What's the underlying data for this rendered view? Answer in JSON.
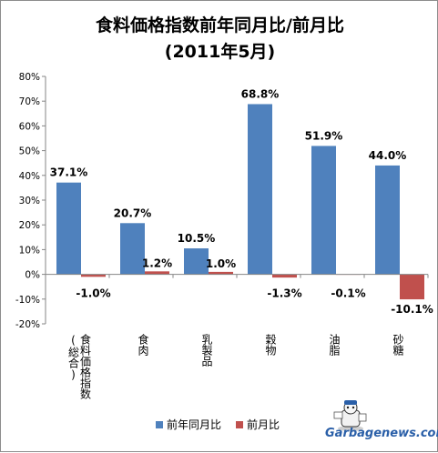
{
  "chart_data": {
    "type": "bar",
    "title": "食料価格指数前年同月比/前月比",
    "subtitle": "(2011年5月)",
    "categories": [
      [
        "食料価格指数",
        "(総合)"
      ],
      [
        "食肉"
      ],
      [
        "乳製品"
      ],
      [
        "穀物"
      ],
      [
        "油脂"
      ],
      [
        "砂糖"
      ]
    ],
    "series": [
      {
        "name": "前年同月比",
        "color": "#4f81bd",
        "values": [
          37.1,
          20.7,
          10.5,
          68.8,
          51.9,
          44.0
        ],
        "labels": [
          "37.1%",
          "20.7%",
          "10.5%",
          "68.8%",
          "51.9%",
          "44.0%"
        ]
      },
      {
        "name": "前月比",
        "color": "#c0504d",
        "values": [
          -1.0,
          1.2,
          1.0,
          -1.3,
          -0.1,
          -10.1
        ],
        "labels": [
          "-1.0%",
          "1.2%",
          "1.0%",
          "-1.3%",
          "-0.1%",
          "-10.1%"
        ]
      }
    ],
    "ylim": [
      -20,
      80
    ],
    "yticks": [
      -20,
      -10,
      0,
      10,
      20,
      30,
      40,
      50,
      60,
      70,
      80
    ],
    "ytick_labels": [
      "-20%",
      "-10%",
      "0%",
      "10%",
      "20%",
      "30%",
      "40%",
      "50%",
      "60%",
      "70%",
      "80%"
    ],
    "grid": false,
    "legend_position": "bottom-center"
  },
  "watermark": "Garbagenews.com"
}
